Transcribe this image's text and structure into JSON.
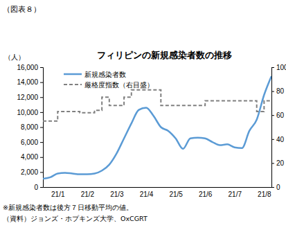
{
  "chart_data": {
    "type": "line",
    "title": "フィリピンの新規感染者数の推移",
    "ylabel": "（人）",
    "annotations": [
      "（図表８）",
      "※新規感染者数は後方７日移動平均の値。",
      "（資料）ジョンズ・ホプキンズ大学、OxCGRT"
    ],
    "categories": [
      null,
      null,
      "21/1",
      null,
      null,
      null,
      "21/2",
      null,
      null,
      null,
      "21/3",
      null,
      null,
      null,
      "21/4",
      null,
      null,
      null,
      "21/5",
      null,
      null,
      null,
      "21/6",
      null,
      null,
      null,
      "21/7",
      null,
      null,
      null,
      "21/8",
      null
    ],
    "series": [
      {
        "name": "新規感染者数",
        "color": "#5b9bd5",
        "line_style": "solid",
        "values": [
          1100,
          1300,
          1800,
          1900,
          1800,
          1700,
          1700,
          1800,
          2200,
          3000,
          4500,
          6500,
          8500,
          10300,
          10600,
          9500,
          8000,
          7500,
          6500,
          5100,
          6500,
          6600,
          6500,
          6000,
          5600,
          5700,
          5300,
          5200,
          7500,
          9000,
          12300,
          14800
        ]
      },
      {
        "name": "厳格度指数（右目盛）",
        "color": "#808080",
        "line_style": "dashed",
        "axis": "y2",
        "values": [
          55,
          55,
          63,
          63,
          63,
          62,
          62,
          64,
          75,
          68,
          68,
          75,
          81,
          81,
          81,
          81,
          68,
          68,
          68,
          68,
          68,
          68,
          72,
          72,
          72,
          72,
          72,
          72,
          72,
          63,
          72,
          72
        ]
      }
    ],
    "ylim": [
      0,
      16000
    ],
    "yticks": [
      0,
      {
        "value": 2000,
        "label": "2,000"
      },
      {
        "value": 4000,
        "label": "4,000"
      },
      {
        "value": 6000,
        "label": "6,000"
      },
      {
        "value": 8000,
        "label": "8,000"
      },
      {
        "value": 10000,
        "label": "10,000"
      },
      {
        "value": 12000,
        "label": "12,000"
      },
      {
        "value": 14000,
        "label": "14,000"
      },
      {
        "value": 16000,
        "label": "16,000"
      }
    ],
    "y2lim": [
      0,
      100
    ],
    "y2ticks": [
      0,
      20,
      40,
      60,
      80,
      100
    ],
    "grid": false,
    "legend": "top-left"
  }
}
